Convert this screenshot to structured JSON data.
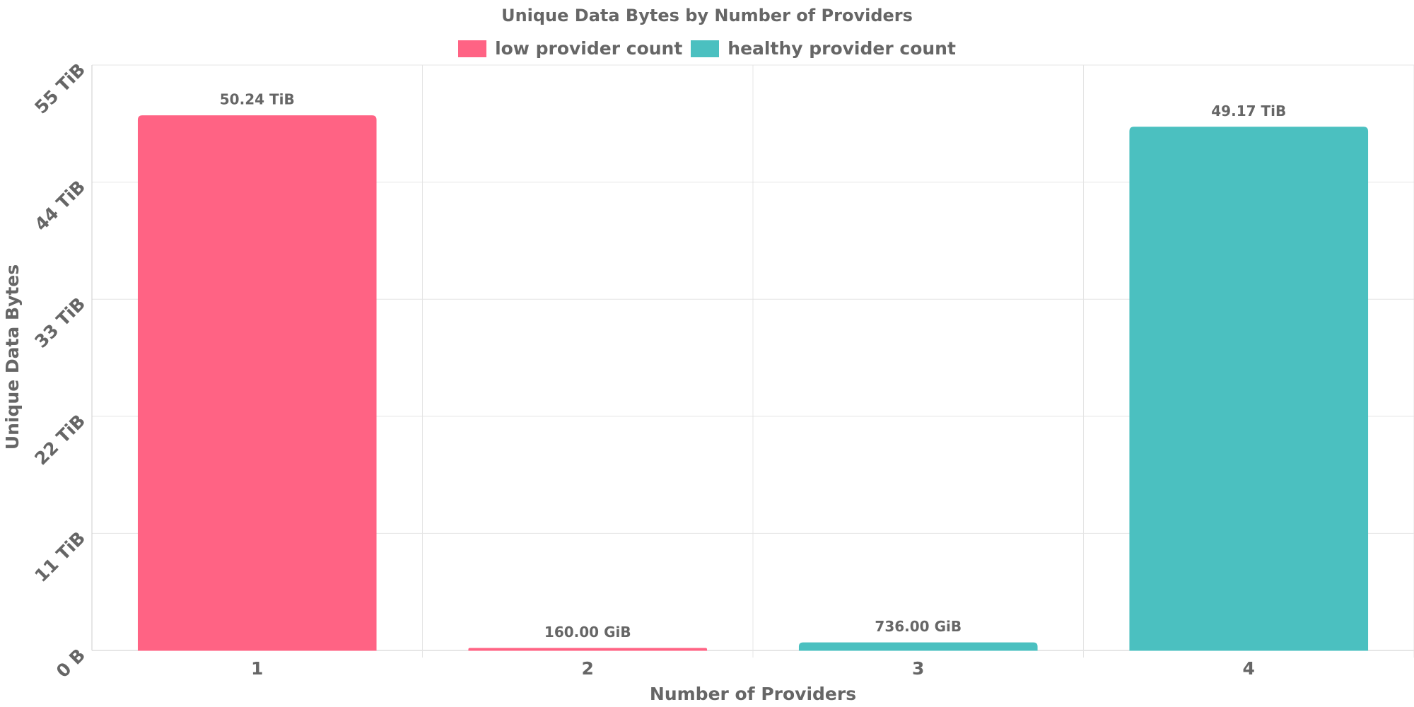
{
  "chart_data": {
    "type": "bar",
    "title": "Unique Data Bytes by Number of Providers",
    "xlabel": "Number of Providers",
    "ylabel": "Unique Data Bytes",
    "categories": [
      "1",
      "2",
      "3",
      "4"
    ],
    "series": [
      {
        "name": "low provider count",
        "color": "#ff6384",
        "values": [
          50.24,
          0.15625,
          null,
          null
        ],
        "labels": [
          "50.24 TiB",
          "160.00 GiB",
          null,
          null
        ]
      },
      {
        "name": "healthy provider count",
        "color": "#4bc0c0",
        "values": [
          null,
          null,
          0.71875,
          49.17
        ],
        "labels": [
          null,
          null,
          "736.00 GiB",
          "49.17 TiB"
        ]
      }
    ],
    "value_unit": "TiB",
    "ylim": [
      0,
      55
    ],
    "yticks": [
      0,
      11,
      22,
      33,
      44,
      55
    ],
    "ytick_labels": [
      "0 B",
      "11 TiB",
      "22 TiB",
      "33 TiB",
      "44 TiB",
      "55 TiB"
    ],
    "legend_position": "top",
    "grid": true
  }
}
